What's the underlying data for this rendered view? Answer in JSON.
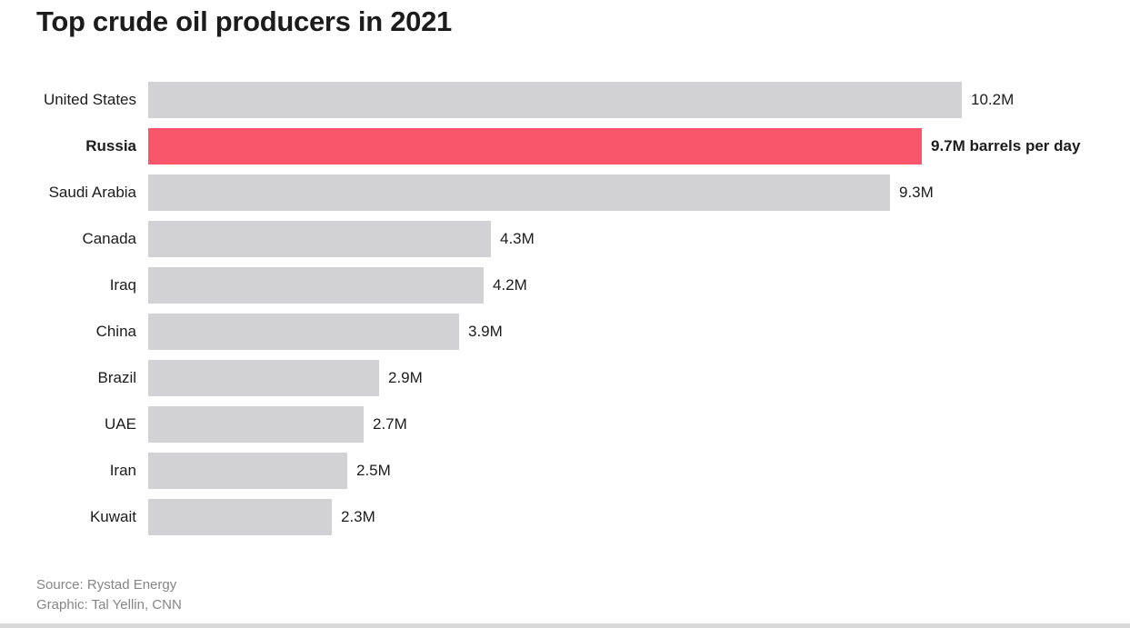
{
  "title": "Top crude oil producers in 2021",
  "footer": {
    "source": "Source: Rystad Energy",
    "credit": "Graphic: Tal Yellin, CNN"
  },
  "colors": {
    "bar_default": "#d2d2d4",
    "bar_highlight": "#f9566b",
    "title_text": "#1c1c1c",
    "footer_text": "#868686"
  },
  "chart_data": {
    "type": "bar",
    "orientation": "horizontal",
    "title": "Top crude oil producers in 2021",
    "unit": "million barrels per day",
    "xlim": [
      0,
      10.2
    ],
    "highlight_index": 1,
    "highlight_category": "Russia",
    "categories": [
      "United States",
      "Russia",
      "Saudi Arabia",
      "Canada",
      "Iraq",
      "China",
      "Brazil",
      "UAE",
      "Iran",
      "Kuwait"
    ],
    "values": [
      10.2,
      9.7,
      9.3,
      4.3,
      4.2,
      3.9,
      2.9,
      2.7,
      2.5,
      2.3
    ],
    "value_labels": [
      "10.2M",
      "9.7M barrels per day",
      "9.3M",
      "4.3M",
      "4.2M",
      "3.9M",
      "2.9M",
      "2.7M",
      "2.5M",
      "2.3M"
    ],
    "legend": "none",
    "grid": false,
    "source": "Rystad Energy",
    "credit": "Tal Yellin, CNN"
  }
}
